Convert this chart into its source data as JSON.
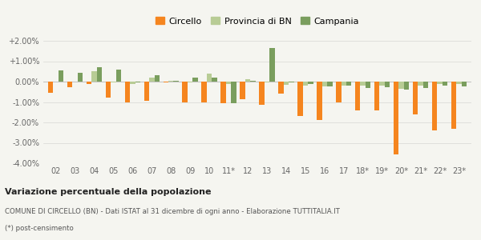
{
  "categories": [
    "02",
    "03",
    "04",
    "05",
    "06",
    "07",
    "08",
    "09",
    "10",
    "11*",
    "12",
    "13",
    "14",
    "15",
    "16",
    "17",
    "18*",
    "19*",
    "20*",
    "21*",
    "22*",
    "23*"
  ],
  "circello": [
    -0.55,
    -0.28,
    -0.1,
    -0.8,
    -1.0,
    -0.95,
    -0.05,
    -1.0,
    -1.0,
    -1.05,
    -0.85,
    -1.15,
    -0.6,
    -1.7,
    -1.9,
    -1.0,
    -1.4,
    -1.4,
    -3.55,
    -1.6,
    -2.4,
    -2.3
  ],
  "provincia_bn": [
    0.0,
    0.0,
    0.5,
    -0.05,
    -0.1,
    0.2,
    0.05,
    -0.05,
    0.4,
    -0.1,
    0.1,
    -0.05,
    -0.15,
    -0.2,
    -0.25,
    -0.2,
    -0.2,
    -0.2,
    -0.35,
    -0.2,
    -0.1,
    -0.1
  ],
  "campania": [
    0.55,
    0.45,
    0.7,
    0.58,
    -0.02,
    0.3,
    0.05,
    0.18,
    0.18,
    -1.05,
    0.05,
    1.65,
    -0.05,
    -0.12,
    -0.22,
    -0.18,
    -0.3,
    -0.28,
    -0.4,
    -0.32,
    -0.2,
    -0.22
  ],
  "color_circello": "#f5851f",
  "color_provincia": "#b8cc95",
  "color_campania": "#7a9e5e",
  "title": "Variazione percentuale della popolazione",
  "footnote1": "COMUNE DI CIRCELLO (BN) - Dati ISTAT al 31 dicembre di ogni anno - Elaborazione TUTTITALIA.IT",
  "footnote2": "(*) post-censimento",
  "ylim_min": -4.0,
  "ylim_max": 2.0,
  "ytick_vals": [
    -4.0,
    -3.0,
    -2.0,
    -1.0,
    0.0,
    1.0,
    2.0
  ],
  "ytick_labels": [
    "-4.00%",
    "-3.00%",
    "-2.00%",
    "-1.00%",
    "0.00%",
    "+1.00%",
    "+2.00%"
  ],
  "legend_labels": [
    "Circello",
    "Provincia di BN",
    "Campania"
  ],
  "bar_width": 0.27,
  "background_color": "#f5f5f0"
}
